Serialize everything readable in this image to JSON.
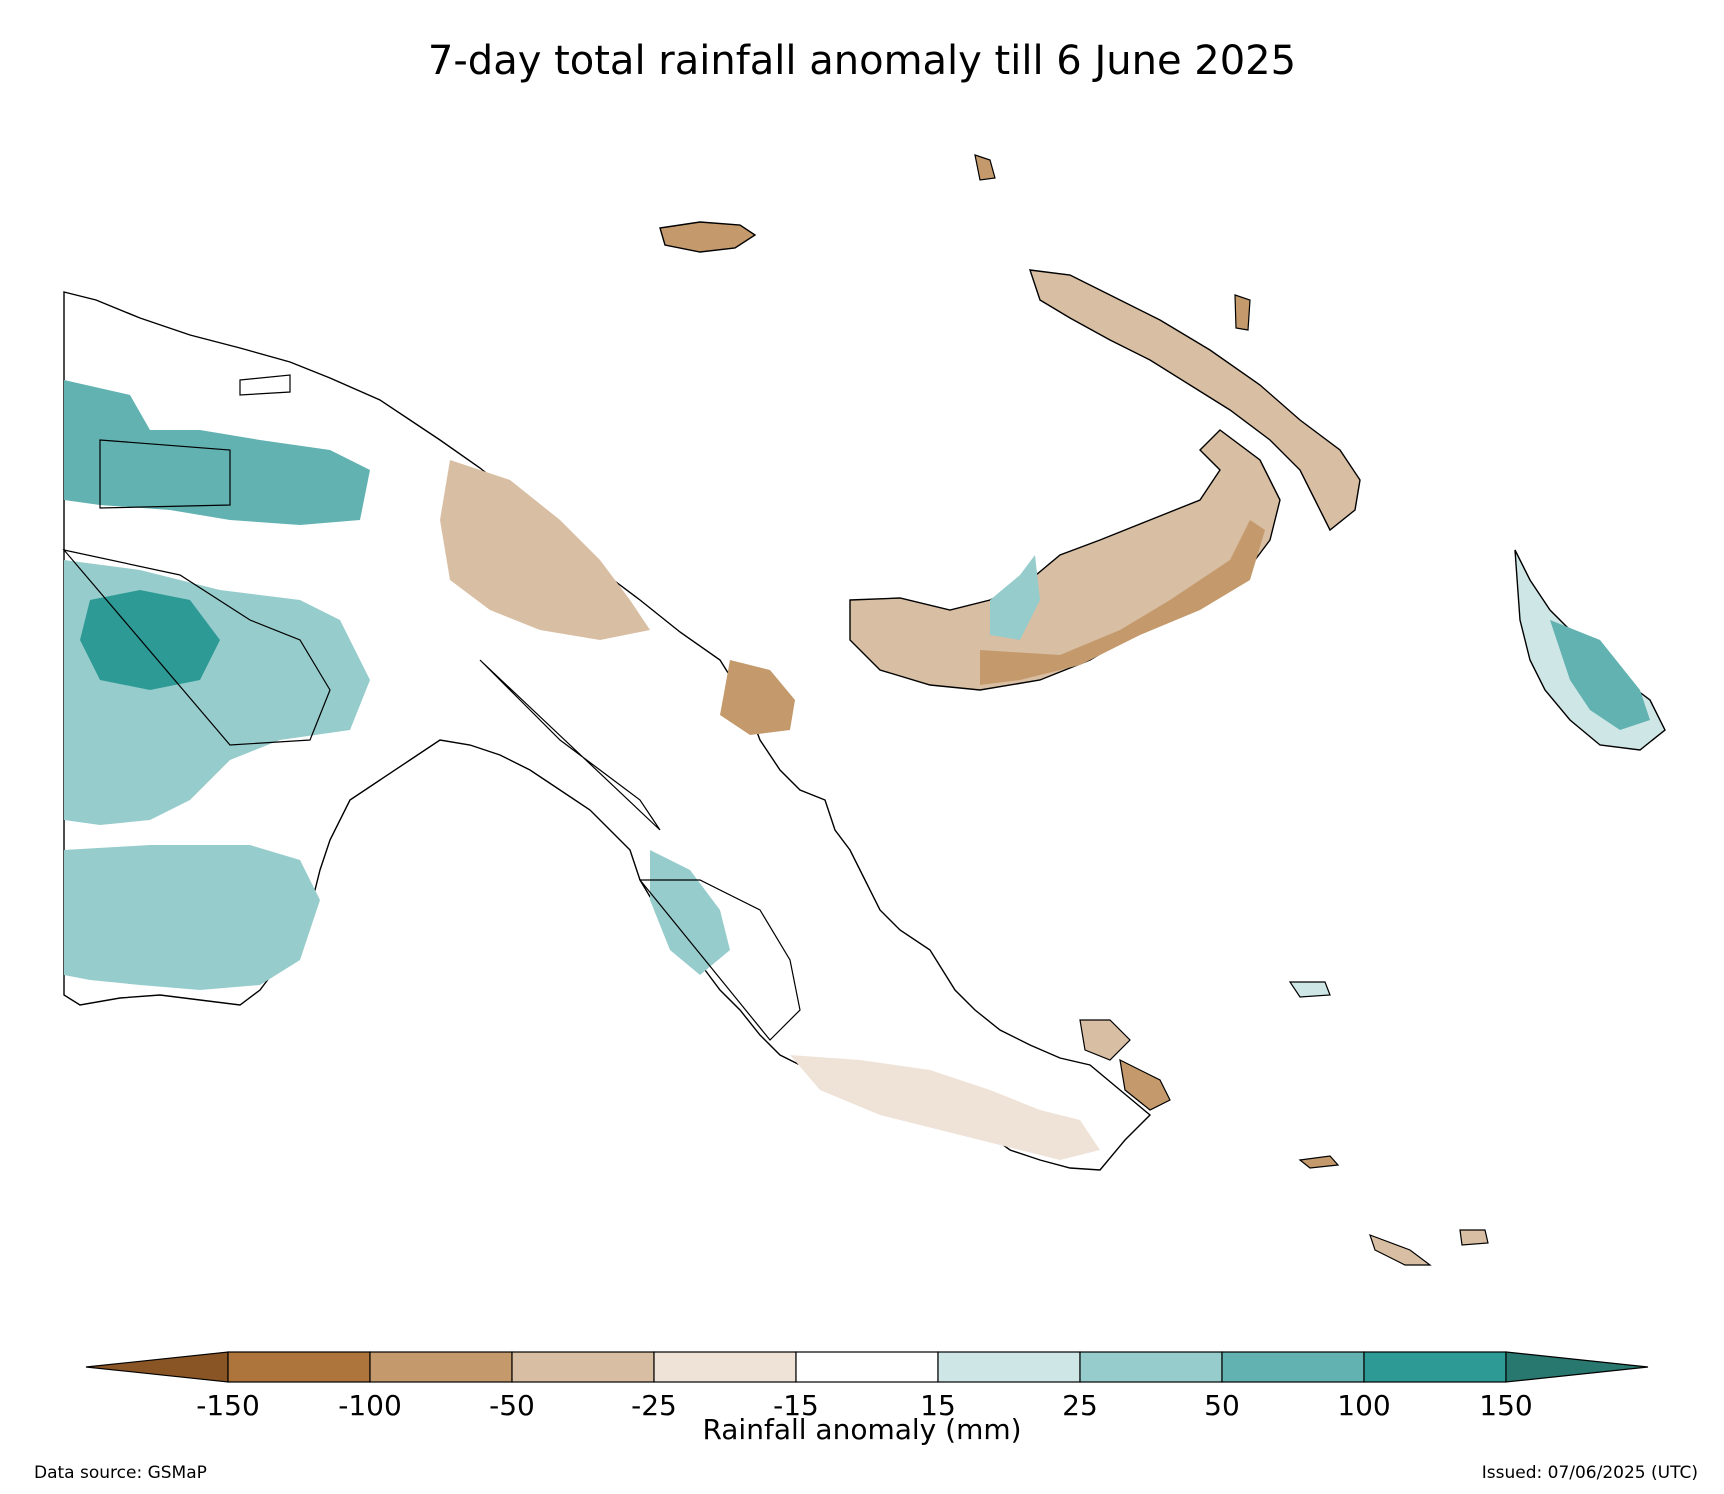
{
  "title": "7-day total rainfall anomaly till 6 June 2025",
  "colorbar": {
    "label": "Rainfall anomaly (mm)",
    "ticks": [
      "-150",
      "-100",
      "-50",
      "-25",
      "-15",
      "15",
      "25",
      "50",
      "100",
      "150"
    ],
    "colors": [
      "#8a5524",
      "#ad743c",
      "#c49a6c",
      "#d8bea2",
      "#efe3d8",
      "#ffffff",
      "#cfe6e6",
      "#97cccc",
      "#62b2b2",
      "#2e9a96",
      "#28786f"
    ]
  },
  "colors": {
    "deficit_strong": "#c49a6c",
    "deficit_moderate": "#d8bea2",
    "deficit_light": "#efe3d8",
    "surplus_light": "#cfe6e6",
    "surplus_moderate": "#97cccc",
    "surplus_strong": "#62b2b2",
    "surplus_very_strong": "#2e9a96"
  },
  "footer": {
    "source": "Data source: GSMaP",
    "issued": "Issued: 07/06/2025 (UTC)"
  }
}
